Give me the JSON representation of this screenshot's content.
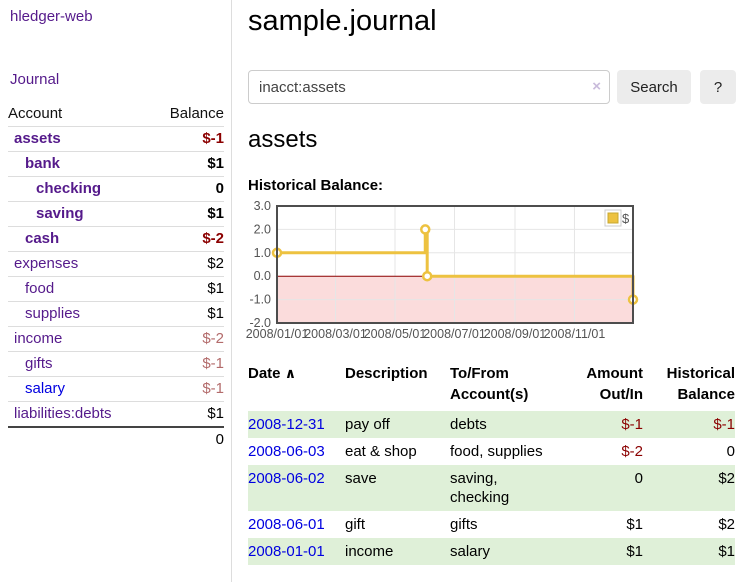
{
  "sidebar": {
    "app_title": "hledger-web",
    "journal_link": "Journal",
    "accounts_table": {
      "headers": {
        "account": "Account",
        "balance": "Balance"
      },
      "rows": [
        {
          "name": "assets",
          "balance": "$-1",
          "indent": 1,
          "bold": true,
          "balance_style": "neg-strong",
          "link_style": "purple"
        },
        {
          "name": "bank",
          "balance": "$1",
          "indent": 2,
          "bold": true,
          "balance_style": "pos",
          "link_style": "purple"
        },
        {
          "name": "checking",
          "balance": "0",
          "indent": 3,
          "bold": true,
          "balance_style": "pos",
          "link_style": "purple"
        },
        {
          "name": "saving",
          "balance": "$1",
          "indent": 3,
          "bold": true,
          "balance_style": "pos",
          "link_style": "purple"
        },
        {
          "name": "cash",
          "balance": "$-2",
          "indent": 2,
          "bold": true,
          "balance_style": "neg-strong",
          "link_style": "purple"
        },
        {
          "name": "expenses",
          "balance": "$2",
          "indent": 1,
          "bold": false,
          "balance_style": "pos",
          "link_style": "purple"
        },
        {
          "name": "food",
          "balance": "$1",
          "indent": 2,
          "bold": false,
          "balance_style": "pos",
          "link_style": "purple"
        },
        {
          "name": "supplies",
          "balance": "$1",
          "indent": 2,
          "bold": false,
          "balance_style": "pos",
          "link_style": "purple"
        },
        {
          "name": "income",
          "balance": "$-2",
          "indent": 1,
          "bold": false,
          "balance_style": "neg-weak",
          "link_style": "purple"
        },
        {
          "name": "gifts",
          "balance": "$-1",
          "indent": 2,
          "bold": false,
          "balance_style": "neg-weak",
          "link_style": "purple"
        },
        {
          "name": "salary",
          "balance": "$-1",
          "indent": 2,
          "bold": false,
          "balance_style": "neg-weak",
          "link_style": "blue"
        },
        {
          "name": "liabilities:debts",
          "balance": "$1",
          "indent": 1,
          "bold": false,
          "balance_style": "pos",
          "link_style": "purple"
        }
      ],
      "total": "0"
    }
  },
  "main": {
    "title": "sample.journal",
    "search": {
      "value": "inacct:assets",
      "clear_icon": "×",
      "search_button": "Search",
      "help_button": "?"
    },
    "account_heading": "assets",
    "chart_label": "Historical Balance:",
    "register_table": {
      "headers": {
        "date": "Date",
        "sort_icon": "∧",
        "description": "Description",
        "accounts": "To/From Account(s)",
        "amount": "Amount Out/In",
        "balance": "Historical Balance"
      },
      "rows": [
        {
          "date": "2008-12-31",
          "description": "pay off",
          "accounts": "debts",
          "amount": "$-1",
          "amount_negative": true,
          "balance": "$-1",
          "balance_negative": true
        },
        {
          "date": "2008-06-03",
          "description": "eat & shop",
          "accounts": "food, supplies",
          "amount": "$-2",
          "amount_negative": true,
          "balance": "0",
          "balance_negative": false
        },
        {
          "date": "2008-06-02",
          "description": "save",
          "accounts": "saving,\nchecking",
          "amount": "0",
          "amount_negative": false,
          "balance": "$2",
          "balance_negative": false
        },
        {
          "date": "2008-06-01",
          "description": "gift",
          "accounts": "gifts",
          "amount": "$1",
          "amount_negative": false,
          "balance": "$2",
          "balance_negative": false
        },
        {
          "date": "2008-01-01",
          "description": "income",
          "accounts": "salary",
          "amount": "$1",
          "amount_negative": false,
          "balance": "$1",
          "balance_negative": false
        }
      ]
    }
  },
  "colors": {
    "accent_purple": "#551a8b",
    "link_blue": "#0000e0",
    "negative_strong": "#8b0000",
    "negative_weak": "#b36b6b",
    "row_green": "#dff0d8"
  },
  "chart_data": {
    "type": "line",
    "step": true,
    "title": "Historical Balance:",
    "series": [
      {
        "name": "$",
        "points": [
          {
            "date": "2008-01-01",
            "value": 1
          },
          {
            "date": "2008-06-01",
            "value": 2
          },
          {
            "date": "2008-06-03",
            "value": 0
          },
          {
            "date": "2008-12-31",
            "value": -1
          }
        ]
      }
    ],
    "xrange": [
      "2008-01-01",
      "2008-12-31"
    ],
    "xticks": [
      {
        "date": "2008-01-01",
        "label": "2008/01/01"
      },
      {
        "date": "2008-03-01",
        "label": "2008/03/01"
      },
      {
        "date": "2008-05-01",
        "label": "2008/05/01"
      },
      {
        "date": "2008-07-01",
        "label": "2008/07/01"
      },
      {
        "date": "2008-09-01",
        "label": "2008/09/01"
      },
      {
        "date": "2008-11-01",
        "label": "2008/11/01"
      }
    ],
    "ylim": [
      -2,
      3
    ],
    "yticks": [
      3,
      2,
      1,
      0,
      -1,
      -2
    ],
    "ytick_labels": [
      "3.0",
      "2.0",
      "1.0",
      "0.0",
      "-1.0",
      "-2.0"
    ],
    "legend": {
      "label": "$",
      "position": "top-right"
    },
    "grid": true,
    "colors": {
      "line": "#edc240",
      "marker_fill": "#ffffff",
      "negative_region": "#fbdcdc",
      "zero_line": "#8b0000",
      "grid": "#e6e6e6",
      "border": "#4d4d4d",
      "tick_text": "#545454",
      "legend_border": "#cccccc",
      "legend_swatch_border": "#c8a830"
    }
  }
}
